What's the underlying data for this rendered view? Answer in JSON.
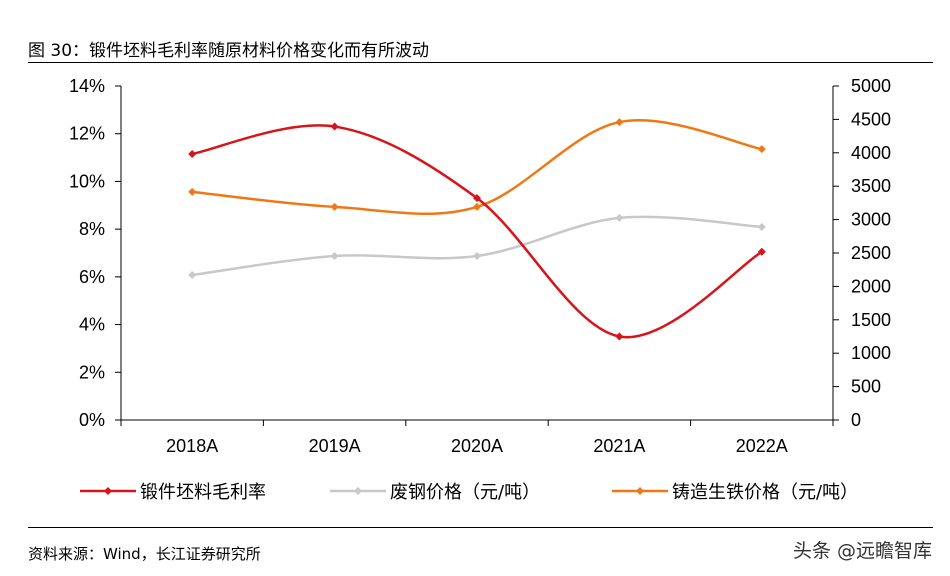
{
  "title": "图 30：锻件坯料毛利率随原材料价格变化而有所波动",
  "source": "资料来源：Wind，长江证券研究所",
  "watermark": "头条 @远瞻智库",
  "chart_data": {
    "type": "line",
    "categories": [
      "2018A",
      "2019A",
      "2020A",
      "2021A",
      "2022A"
    ],
    "y_left": {
      "range": [
        0,
        14
      ],
      "ticks": [
        "0%",
        "2%",
        "4%",
        "6%",
        "8%",
        "10%",
        "12%",
        "14%"
      ]
    },
    "y_right": {
      "range": [
        0,
        5000
      ],
      "ticks": [
        "0",
        "500",
        "1000",
        "1500",
        "2000",
        "2500",
        "3000",
        "3500",
        "4000",
        "4500",
        "5000"
      ]
    },
    "legend_position": "bottom",
    "grid": false,
    "series": [
      {
        "name": "锻件坯料毛利率",
        "axis": "left",
        "color": "#D7141A",
        "values": [
          11.15,
          12.3,
          9.3,
          3.5,
          7.05
        ]
      },
      {
        "name": "废钢价格（元/吨）",
        "axis": "right",
        "color": "#C8C8C8",
        "values": [
          2170,
          2455,
          2455,
          3025,
          2890
        ]
      },
      {
        "name": "铸造生铁价格（元/吨）",
        "axis": "right",
        "color": "#F07814",
        "values": [
          3415,
          3190,
          3190,
          4460,
          4055
        ]
      }
    ]
  }
}
